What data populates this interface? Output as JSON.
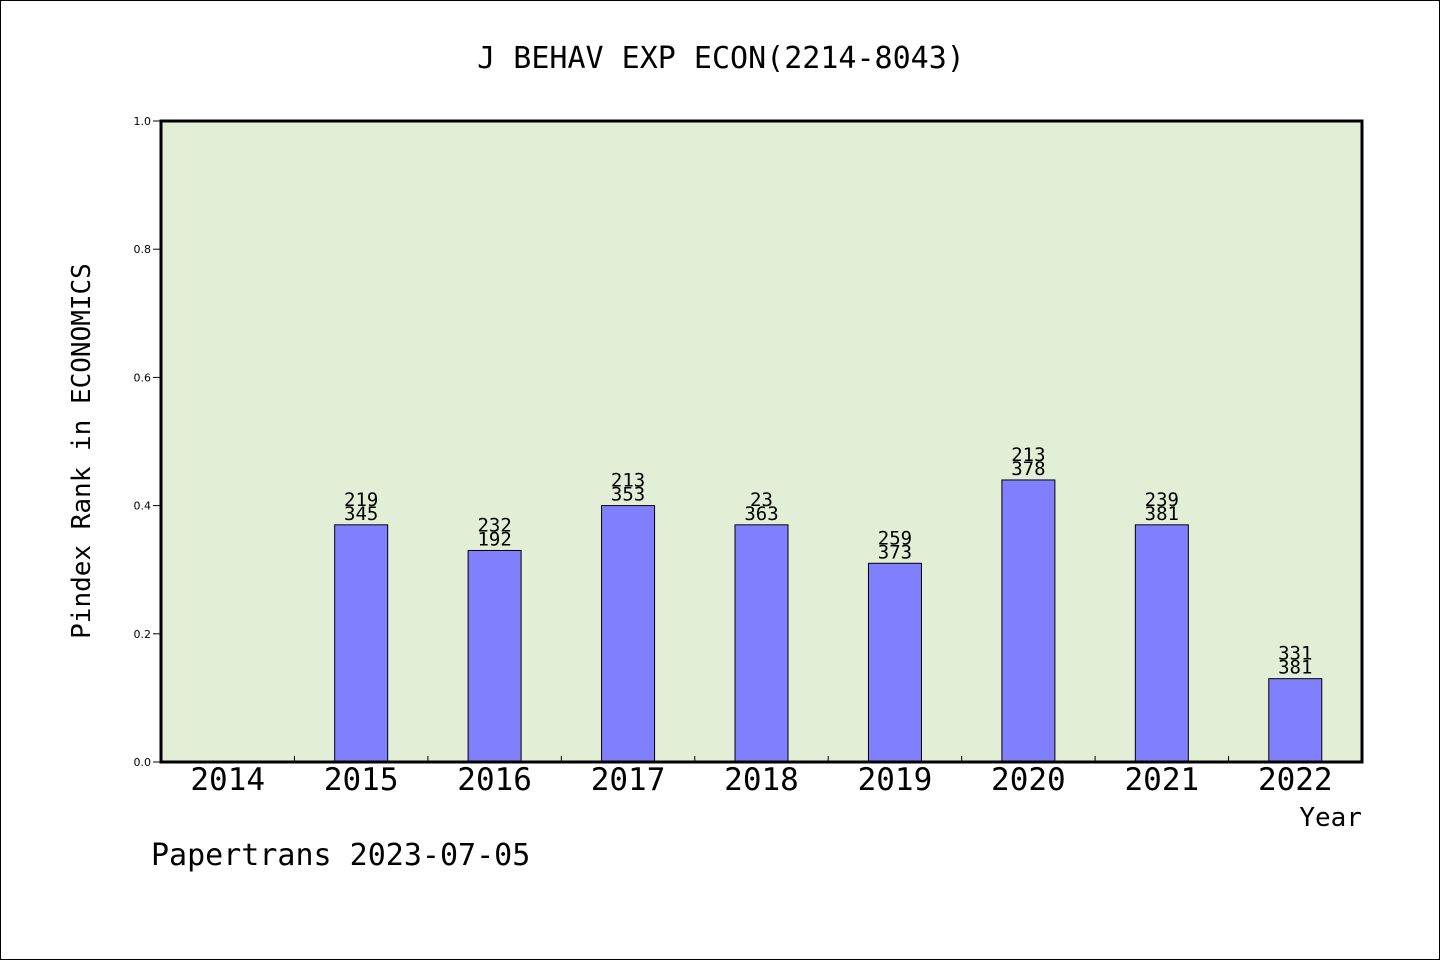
{
  "footer": "Papertrans 2023-07-05",
  "colors": {
    "plot_background": "#e2efd6",
    "bar_fill": "#8080ff",
    "bar_stroke": "#000000",
    "axis": "#000000"
  },
  "chart_data": {
    "type": "bar",
    "title": "J BEHAV EXP ECON(2214-8043)",
    "xlabel": "Year",
    "ylabel": "Pindex Rank in ECONOMICS",
    "ylim": [
      0,
      1.0
    ],
    "yticks": [
      "0.0",
      "0.2",
      "0.4",
      "0.6",
      "0.8",
      "1.0"
    ],
    "grid": false,
    "categories": [
      "2014",
      "2015",
      "2016",
      "2017",
      "2018",
      "2019",
      "2020",
      "2021",
      "2022"
    ],
    "values": [
      null,
      0.37,
      0.33,
      0.4,
      0.37,
      0.31,
      0.44,
      0.37,
      0.13
    ],
    "labels_top": [
      "",
      "219",
      "232",
      "213",
      "23",
      "259",
      "213",
      "239",
      "331"
    ],
    "labels_bottom": [
      "",
      "345",
      "192",
      "353",
      "363",
      "373",
      "378",
      "381",
      "381"
    ]
  }
}
